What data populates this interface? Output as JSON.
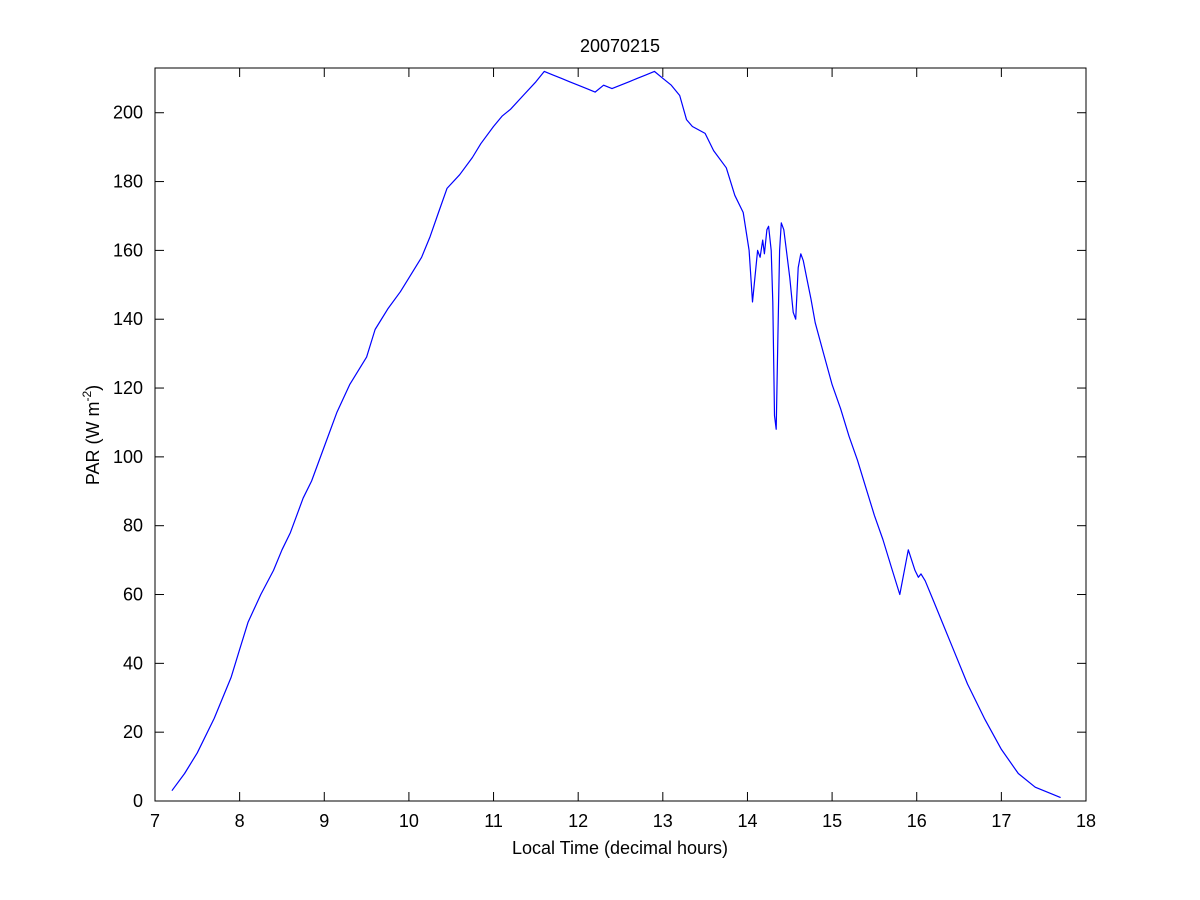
{
  "chart_data": {
    "type": "line",
    "title": "20070215",
    "xlabel": "Local Time (decimal hours)",
    "ylabel": {
      "main": "PAR (W m",
      "superscript": "-2",
      "close": ")"
    },
    "xlim": [
      7,
      18
    ],
    "ylim": [
      0,
      213
    ],
    "xticks": [
      7,
      8,
      9,
      10,
      11,
      12,
      13,
      14,
      15,
      16,
      17,
      18
    ],
    "yticks": [
      0,
      20,
      40,
      60,
      80,
      100,
      120,
      140,
      160,
      180,
      200
    ],
    "grid": false,
    "line_color": "#0000ff",
    "series": [
      {
        "x": [
          7.2,
          7.35,
          7.5,
          7.7,
          7.9,
          8.0,
          8.1,
          8.25,
          8.4,
          8.5,
          8.6,
          8.75,
          8.85,
          9.0,
          9.15,
          9.3,
          9.5,
          9.6,
          9.75,
          9.9,
          10.0,
          10.15,
          10.25,
          10.35,
          10.45,
          10.6,
          10.75,
          10.85,
          11.0,
          11.1,
          11.2,
          11.35,
          11.5,
          11.6,
          11.7,
          11.8,
          11.9,
          12.0,
          12.1,
          12.2,
          12.3,
          12.4,
          12.5,
          12.6,
          12.7,
          12.8,
          12.9,
          13.0,
          13.1,
          13.2,
          13.28,
          13.35,
          13.5,
          13.6,
          13.75,
          13.85,
          13.95,
          14.02,
          14.06,
          14.08,
          14.1,
          14.12,
          14.15,
          14.18,
          14.2,
          14.23,
          14.25,
          14.28,
          14.3,
          14.32,
          14.34,
          14.36,
          14.38,
          14.4,
          14.43,
          14.46,
          14.5,
          14.54,
          14.57,
          14.6,
          14.63,
          14.66,
          14.7,
          14.75,
          14.8,
          14.9,
          15.0,
          15.1,
          15.2,
          15.3,
          15.4,
          15.5,
          15.6,
          15.7,
          15.8,
          15.9,
          15.98,
          16.02,
          16.05,
          16.1,
          16.2,
          16.4,
          16.6,
          16.8,
          17.0,
          17.2,
          17.4,
          17.6,
          17.7
        ],
        "y": [
          3,
          8,
          14,
          24,
          36,
          44,
          52,
          60,
          67,
          73,
          78,
          88,
          93,
          103,
          113,
          121,
          129,
          137,
          143,
          148,
          152,
          158,
          164,
          171,
          178,
          182,
          187,
          191,
          196,
          199,
          201,
          205,
          209,
          212,
          211,
          210,
          209,
          208,
          207,
          206,
          208,
          207,
          208,
          209,
          210,
          211,
          212,
          210,
          208,
          205,
          198,
          196,
          194,
          189,
          184,
          176,
          171,
          160,
          145,
          150,
          155,
          160,
          158,
          163,
          159,
          166,
          167,
          160,
          145,
          112,
          108,
          135,
          160,
          168,
          166,
          160,
          152,
          142,
          140,
          155,
          159,
          157,
          152,
          146,
          139,
          130,
          121,
          114,
          106,
          99,
          91,
          83,
          76,
          68,
          60,
          73,
          67,
          65,
          66,
          64,
          58,
          46,
          34,
          24,
          15,
          8,
          4,
          2,
          1
        ]
      }
    ]
  }
}
